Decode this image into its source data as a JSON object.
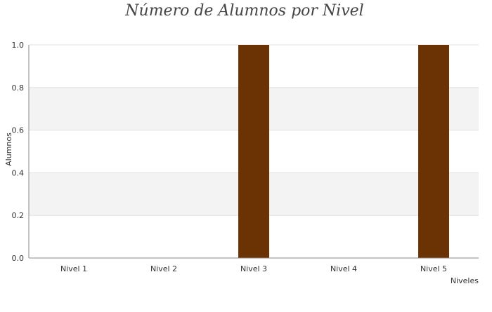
{
  "chart_data": {
    "type": "bar",
    "title": "Número de Alumnos por Nivel",
    "xlabel": "Niveles",
    "ylabel": "Alumnos",
    "categories": [
      "Nivel 1",
      "Nivel 2",
      "Nivel 3",
      "Nivel 4",
      "Nivel 5"
    ],
    "values": [
      0,
      0,
      1,
      0,
      1
    ],
    "ylim": [
      0,
      1
    ],
    "yticks": [
      "0.0",
      "0.2",
      "0.4",
      "0.6",
      "0.8",
      "1.0"
    ],
    "grid": true,
    "legend": "none",
    "colors": {
      "bar": "#6b3304",
      "band": "#f3f3f3",
      "gridline": "#e2e2e2",
      "axis": "#888888"
    }
  }
}
